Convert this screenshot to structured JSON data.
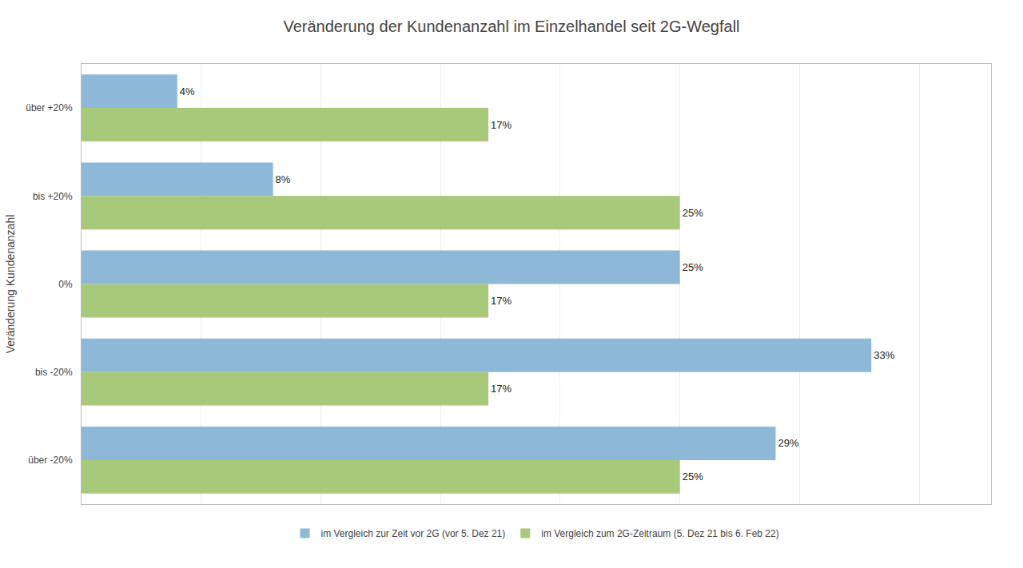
{
  "chart_data": {
    "type": "bar",
    "orientation": "horizontal",
    "title": "Veränderung der Kundenanzahl im Einzelhandel seit 2G-Wegfall",
    "ylabel": "Veränderung Kundenanzahl",
    "categories": [
      "über -20%",
      "bis -20%",
      "0%",
      "bis +20%",
      "über +20%"
    ],
    "series": [
      {
        "name": "im Vergleich zur Zeit vor 2G (vor 5. Dez 21)",
        "color": "#8DB8D8",
        "values": [
          29,
          33,
          25,
          8,
          4
        ],
        "value_labels": [
          "29%",
          "33%",
          "25%",
          "8%",
          "4%"
        ]
      },
      {
        "name": "im Vergleich zum 2G-Zeitraum (5. Dez 21 bis 6. Feb 22)",
        "color": "#A8C87A",
        "values": [
          25,
          17,
          17,
          25,
          17
        ],
        "value_labels": [
          "25%",
          "17%",
          "17%",
          "25%",
          "17%"
        ]
      }
    ],
    "xlim": [
      0,
      38
    ],
    "xticks": [
      0,
      5,
      10,
      15,
      20,
      25,
      30,
      35
    ],
    "grid": true,
    "legend": "bottom",
    "data_labels": true,
    "tick_labels": "y"
  }
}
